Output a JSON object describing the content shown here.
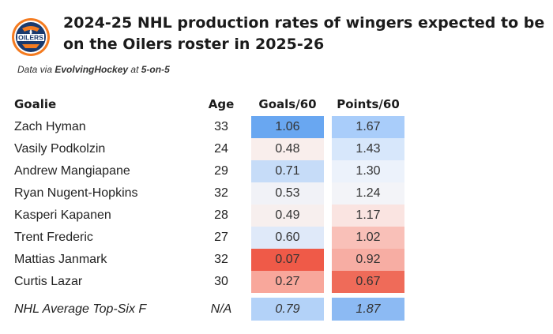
{
  "title": "2024-25 NHL production rates of wingers expected to be on the Oilers roster in 2025-26",
  "subtitle_prefix": "Data via ",
  "subtitle_source": "EvolvingHockey",
  "subtitle_mid": " at ",
  "subtitle_strength": "5-on-5",
  "logo_text": "OILERS",
  "columns": {
    "name": "Goalie",
    "age": "Age",
    "goals": "Goals/60",
    "points": "Points/60"
  },
  "rows": [
    {
      "name": "Zach Hyman",
      "age": "33",
      "goals": "1.06",
      "points": "1.67",
      "goals_color": "#69a7f1",
      "points_color": "#a9cdfa"
    },
    {
      "name": "Vasily Podkolzin",
      "age": "24",
      "goals": "0.48",
      "points": "1.43",
      "goals_color": "#f9eeec",
      "points_color": "#d7e7fb"
    },
    {
      "name": "Andrew Mangiapane",
      "age": "29",
      "goals": "0.71",
      "points": "1.30",
      "goals_color": "#c6dcf8",
      "points_color": "#ecf2fb"
    },
    {
      "name": "Ryan Nugent-Hopkins",
      "age": "32",
      "goals": "0.53",
      "points": "1.24",
      "goals_color": "#f1f2f7",
      "points_color": "#f3f4f8"
    },
    {
      "name": "Kasperi Kapanen",
      "age": "28",
      "goals": "0.49",
      "points": "1.17",
      "goals_color": "#f7efee",
      "points_color": "#fae4e1"
    },
    {
      "name": "Trent Frederic",
      "age": "27",
      "goals": "0.60",
      "points": "1.02",
      "goals_color": "#dfe9f9",
      "points_color": "#f9c0b8"
    },
    {
      "name": "Mattias Janmark",
      "age": "32",
      "goals": "0.07",
      "points": "0.92",
      "goals_color": "#ef5a48",
      "points_color": "#f7ada3"
    },
    {
      "name": "Curtis Lazar",
      "age": "30",
      "goals": "0.27",
      "points": "0.67",
      "goals_color": "#f8a79b",
      "points_color": "#ef6b59"
    }
  ],
  "average": {
    "name": "NHL Average Top-Six F",
    "age": "N/A",
    "goals": "0.79",
    "points": "1.87",
    "goals_color": "#b3d2f8",
    "points_color": "#8cbaf3"
  }
}
